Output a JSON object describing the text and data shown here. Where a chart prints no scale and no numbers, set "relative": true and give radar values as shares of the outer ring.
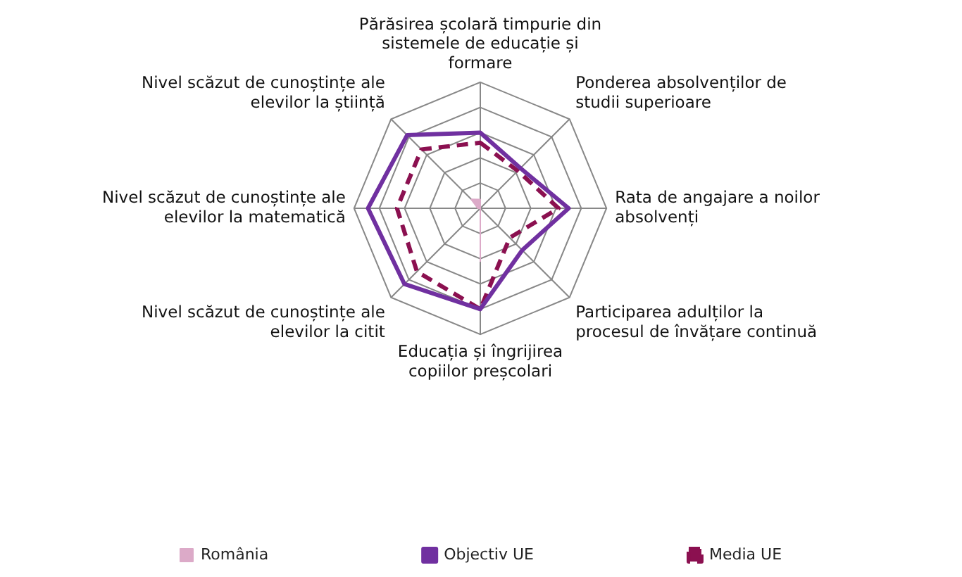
{
  "chart_data": {
    "type": "radar",
    "relative": true,
    "legend": "bottom",
    "marker": "none",
    "grid": true,
    "categories": [
      "Părăsirea școlară timpurie din sistemele de educație și formare",
      "Ponderea absolvenților de studii superioare",
      "Rata de angajare a noilor absolvenți",
      "Participarea adulților la procesul de învățare continuă",
      "Educația și îngrijirea copiilor preșcolari",
      "Nivel scăzut de cunoștințe ale elevilor la citit",
      "Nivel scăzut de cunoștințe ale elevilor la matematică",
      "Nivel scăzut de cunoștințe ale elevilor la știință"
    ],
    "series": [
      {
        "name": "România",
        "type": "area",
        "color": "#dcaac8",
        "values": [
          0.07,
          0,
          0,
          0,
          0.42,
          0,
          0.02,
          0.1
        ]
      },
      {
        "name": "Objectiv UE",
        "color": "#7030a0",
        "line_style": "solid",
        "values": [
          0.6,
          0.45,
          0.7,
          0.47,
          0.8,
          0.85,
          0.89,
          0.82
        ]
      },
      {
        "name": "Media UE",
        "color": "#8b1050",
        "line_style": "dashed",
        "values": [
          0.52,
          0.42,
          0.62,
          0.33,
          0.8,
          0.71,
          0.66,
          0.66
        ]
      }
    ]
  }
}
